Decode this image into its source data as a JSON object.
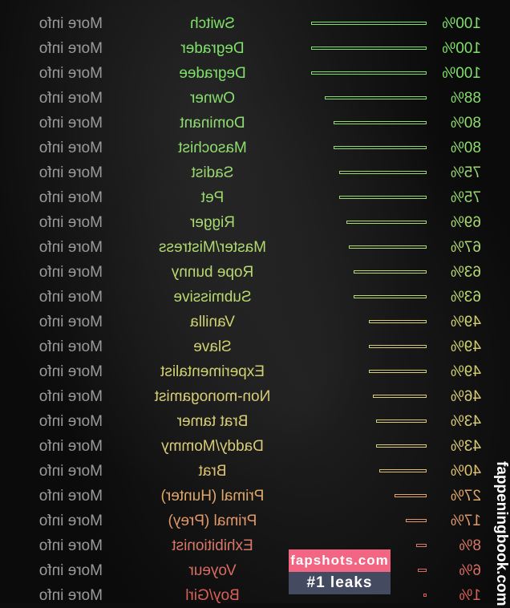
{
  "more_info_label": "More info",
  "results": [
    {
      "name": "Switch",
      "percent": "100%",
      "value": 100,
      "color": "#7fe06a"
    },
    {
      "name": "Degrader",
      "percent": "100%",
      "value": 100,
      "color": "#7fe06a"
    },
    {
      "name": "Degradee",
      "percent": "100%",
      "value": 100,
      "color": "#7fe06a"
    },
    {
      "name": "Owner",
      "percent": "88%",
      "value": 88,
      "color": "#86dc6c"
    },
    {
      "name": "Dominant",
      "percent": "80%",
      "value": 80,
      "color": "#8fdc70"
    },
    {
      "name": "Masochist",
      "percent": "80%",
      "value": 80,
      "color": "#8fdc70"
    },
    {
      "name": "Sadist",
      "percent": "75%",
      "value": 75,
      "color": "#98d870"
    },
    {
      "name": "Pet",
      "percent": "75%",
      "value": 75,
      "color": "#98d870"
    },
    {
      "name": "Rigger",
      "percent": "69%",
      "value": 69,
      "color": "#a8d870"
    },
    {
      "name": "Master/Mistress",
      "percent": "67%",
      "value": 67,
      "color": "#b0d870"
    },
    {
      "name": "Rope bunny",
      "percent": "63%",
      "value": 63,
      "color": "#b8d870"
    },
    {
      "name": "Submissive",
      "percent": "63%",
      "value": 63,
      "color": "#b8d870"
    },
    {
      "name": "Vanilla",
      "percent": "49%",
      "value": 49,
      "color": "#d0d070"
    },
    {
      "name": "Slave",
      "percent": "49%",
      "value": 49,
      "color": "#d0d070"
    },
    {
      "name": "Experimentalist",
      "percent": "49%",
      "value": 49,
      "color": "#d0d070"
    },
    {
      "name": "Non-monogamist",
      "percent": "46%",
      "value": 46,
      "color": "#d8cc78"
    },
    {
      "name": "Brat tamer",
      "percent": "43%",
      "value": 43,
      "color": "#d8cc78"
    },
    {
      "name": "Daddy/Mommy",
      "percent": "43%",
      "value": 43,
      "color": "#d8cc78"
    },
    {
      "name": "Brat",
      "percent": "40%",
      "value": 40,
      "color": "#dcc070"
    },
    {
      "name": "Primal (Hunter)",
      "percent": "27%",
      "value": 27,
      "color": "#e0a868"
    },
    {
      "name": "Primal (Prey)",
      "percent": "17%",
      "value": 17,
      "color": "#e09868"
    },
    {
      "name": "Exhibitionist",
      "percent": "8%",
      "value": 8,
      "color": "#d87868"
    },
    {
      "name": "Voyeur",
      "percent": "6%",
      "value": 6,
      "color": "#d86c60"
    },
    {
      "name": "Boy/Girl",
      "percent": "1%",
      "value": 1,
      "color": "#d86058"
    }
  ],
  "watermarks": {
    "site1": "fapshots.com",
    "tagline": "#1 leaks",
    "site2": "fappeningbook.com"
  }
}
